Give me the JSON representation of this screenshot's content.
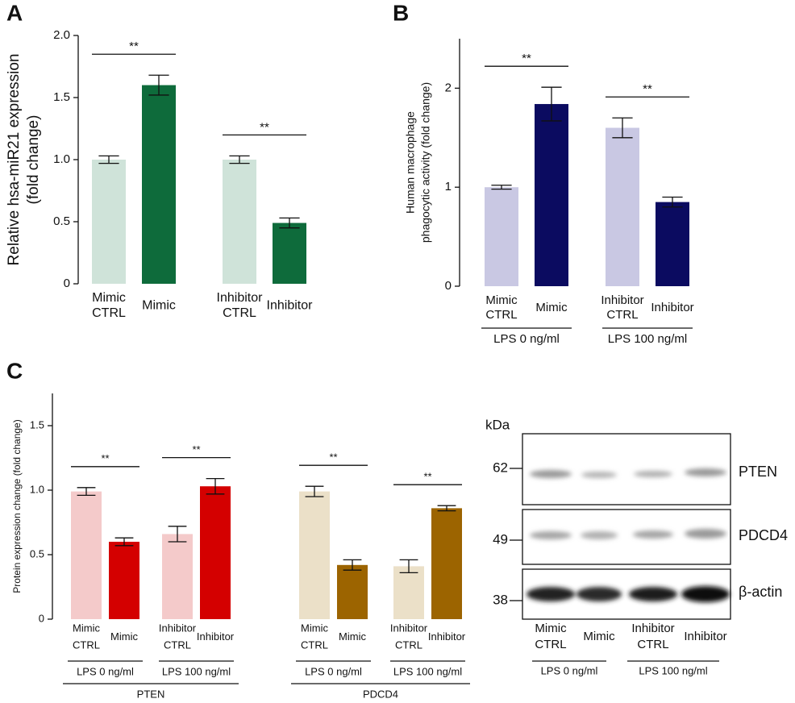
{
  "chart_data": [
    {
      "type": "bar",
      "panel": "A",
      "ylabel": [
        "Relative hsa-miR21 expression",
        "(fold change)"
      ],
      "categories": [
        [
          "Mimic",
          "CTRL"
        ],
        [
          "Mimic"
        ],
        [
          "Inhibitor",
          "CTRL"
        ],
        [
          "Inhibitor"
        ]
      ],
      "values": [
        1.0,
        1.6,
        1.0,
        0.49
      ],
      "errors": [
        0.03,
        0.08,
        0.03,
        0.04
      ],
      "colors": [
        "#cfe3d9",
        "#0e6b3b",
        "#cfe3d9",
        "#0e6b3b"
      ],
      "significance": [
        "**",
        "**"
      ],
      "ylim": [
        0,
        2.0
      ],
      "yticks": [
        0,
        0.5,
        {
          "value": 1,
          "label": "1.0"
        },
        1.5,
        {
          "value": 2,
          "label": "2.0"
        }
      ]
    },
    {
      "type": "bar",
      "panel": "B",
      "ylabel": [
        "Human macrophage",
        "phagocytic activity (fold change)"
      ],
      "categories": [
        [
          "Mimic",
          "CTRL"
        ],
        [
          "Mimic"
        ],
        [
          "Inhibitor",
          "CTRL"
        ],
        [
          "Inhibitor"
        ]
      ],
      "values": [
        1.0,
        1.84,
        1.6,
        0.85
      ],
      "errors": [
        0.02,
        0.17,
        0.1,
        0.05
      ],
      "colors": [
        "#c9c8e3",
        "#0b0b60",
        "#c9c8e3",
        "#0b0b60"
      ],
      "significance": [
        "**",
        "**"
      ],
      "groups": [
        "LPS 0 ng/ml",
        "LPS 100 ng/ml"
      ],
      "ylim": [
        0,
        2.5
      ],
      "yticks": [
        0,
        1,
        2
      ]
    },
    {
      "type": "bar",
      "panel": "C",
      "ylabel": [
        "Protein expression change (fold change)"
      ],
      "categories": [
        [
          "Mimic",
          "CTRL"
        ],
        [
          "Mimic"
        ],
        [
          "Inhibitor",
          "CTRL"
        ],
        [
          "Inhibitor"
        ],
        [
          "Mimic",
          "CTRL"
        ],
        [
          "Mimic"
        ],
        [
          "Inhibitor",
          "CTRL"
        ],
        [
          "Inhibitor"
        ]
      ],
      "values": [
        0.99,
        0.6,
        0.66,
        1.03,
        0.99,
        0.42,
        0.41,
        0.86
      ],
      "errors": [
        0.03,
        0.03,
        0.06,
        0.06,
        0.04,
        0.04,
        0.05,
        0.02
      ],
      "colors": [
        "#f4caca",
        "#d40000",
        "#f4caca",
        "#d40000",
        "#ebe0c8",
        "#9c6400",
        "#ebe0c8",
        "#9c6400"
      ],
      "significance": [
        "**",
        "**",
        "**",
        "**"
      ],
      "groups": [
        "LPS 0 ng/ml",
        "LPS 100 ng/ml",
        "LPS 0 ng/ml",
        "LPS 100 ng/ml"
      ],
      "supergroups": [
        "PTEN",
        "PDCD4"
      ],
      "ylim": [
        0,
        1.75
      ],
      "yticks": [
        0,
        0.5,
        {
          "value": 1,
          "label": "1.0"
        },
        1.5
      ]
    }
  ],
  "blot": {
    "unit": "kDa",
    "markers": [
      "62",
      "49",
      "38"
    ],
    "proteins": [
      "PTEN",
      "PDCD4",
      "β-actin"
    ],
    "lanes": [
      [
        "Mimic",
        "CTRL"
      ],
      [
        "Mimic"
      ],
      [
        "Inhibitor",
        "CTRL"
      ],
      [
        "Inhibitor"
      ]
    ],
    "groups": [
      "LPS 0 ng/ml",
      "LPS 100 ng/ml"
    ]
  }
}
